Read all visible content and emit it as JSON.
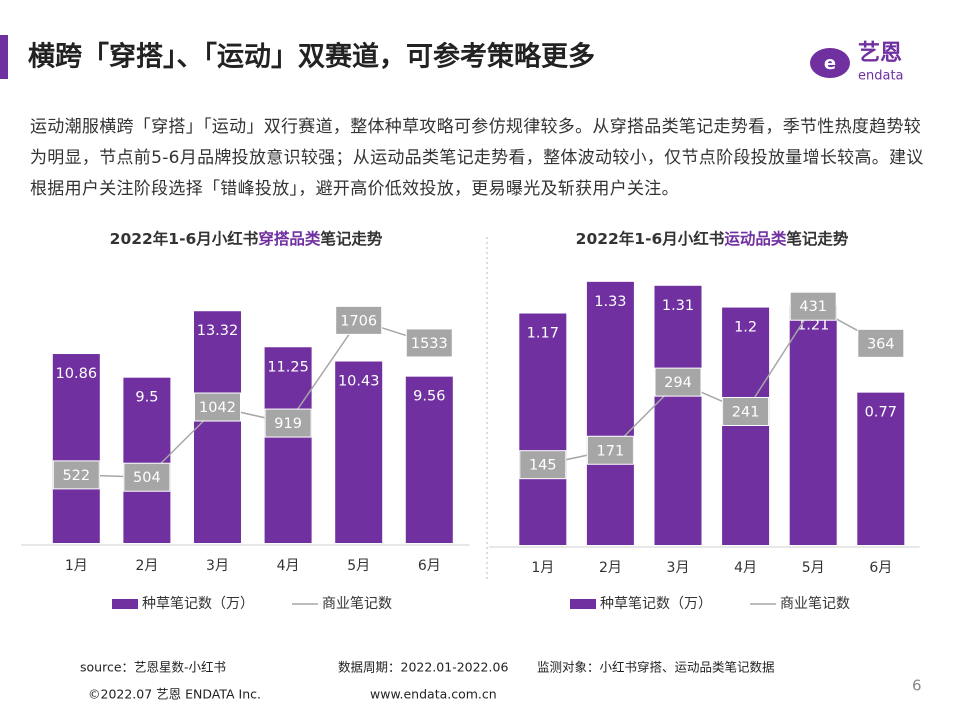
{
  "header": {
    "title": "横跨「穿搭」、「运动」双赛道，可参考策略更多",
    "logo_cn": "艺恩",
    "logo_en": "endata"
  },
  "intro": "运动潮服横跨「穿搭」「运动」双行赛道，整体种草攻略可参仿规律较多。从穿搭品类笔记走势看，季节性热度趋势较为明显，节点前5-6月品牌投放意识较强；从运动品类笔记走势看，整体波动较小，仅节点阶段投放量增长较高。建议根据用户关注阶段选择「错峰投放」，避开高价低效投放，更易曝光及斩获用户关注。",
  "chart_data": [
    {
      "type": "combo",
      "title": {
        "prefix": "2022年1-6月小红书",
        "highlight": "穿搭品类",
        "suffix": "笔记走势"
      },
      "categories": [
        "1月",
        "2月",
        "3月",
        "4月",
        "5月",
        "6月"
      ],
      "series": [
        {
          "name": "种草笔记数（万）",
          "type": "bar",
          "color": "#7030a0",
          "values": [
            10.86,
            9.5,
            13.32,
            11.25,
            10.43,
            9.56
          ]
        },
        {
          "name": "商业笔记数",
          "type": "line",
          "axis": "y2",
          "color": "#a6a6a6",
          "values": [
            522,
            504,
            1042,
            919,
            1706,
            1533
          ]
        }
      ],
      "ylim": [
        0,
        15
      ],
      "y2lim": [
        0,
        2000
      ]
    },
    {
      "type": "combo",
      "title": {
        "prefix": "2022年1-6月小红书",
        "highlight": "运动品类",
        "suffix": "笔记走势"
      },
      "categories": [
        "1月",
        "2月",
        "3月",
        "4月",
        "5月",
        "6月"
      ],
      "series": [
        {
          "name": "种草笔记数（万）",
          "type": "bar",
          "color": "#7030a0",
          "values": [
            1.17,
            1.33,
            1.31,
            1.2,
            1.21,
            0.77
          ]
        },
        {
          "name": "商业笔记数",
          "type": "line",
          "axis": "y2",
          "color": "#a6a6a6",
          "values": [
            145,
            171,
            294,
            241,
            431,
            364
          ]
        }
      ],
      "ylim": [
        0,
        1.4
      ],
      "y2lim": [
        0,
        500
      ]
    }
  ],
  "footer": {
    "source": "source：艺恩星数-小红书",
    "period": "数据周期：2022.01-2022.06",
    "scope": "监测对象：小红书穿搭、运动品类笔记数据",
    "copyright": "©2022.07 艺恩 ENDATA Inc.",
    "website": "www.endata.com.cn",
    "page": "6"
  }
}
